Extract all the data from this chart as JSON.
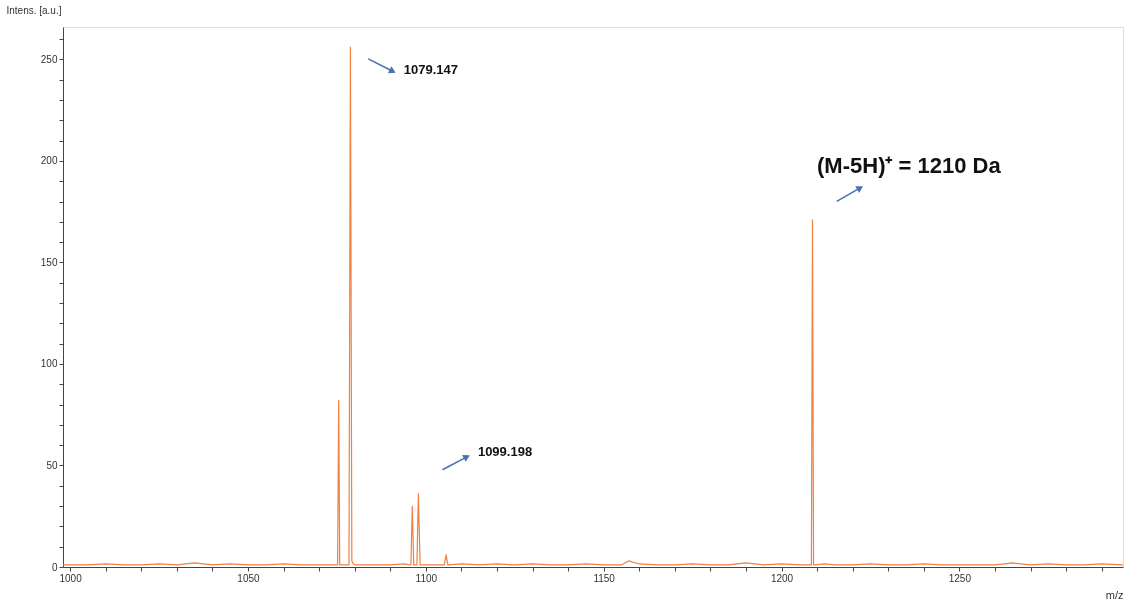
{
  "chart_data": {
    "type": "line",
    "xlabel": "m/z",
    "ylabel": "Intens. [a.u.]",
    "x": [
      998,
      1005,
      1010,
      1015,
      1020,
      1025,
      1030,
      1035,
      1040,
      1045,
      1050,
      1055,
      1060,
      1065,
      1070,
      1074,
      1075.2,
      1075.5,
      1075.8,
      1076.4,
      1077,
      1078.4,
      1078.8,
      1079.2,
      1079.6,
      1080.4,
      1081,
      1082,
      1085,
      1090,
      1094,
      1095.8,
      1096.2,
      1096.6,
      1097.5,
      1097.9,
      1098.4,
      1098.9,
      1100,
      1105.2,
      1105.7,
      1106.2,
      1110,
      1115,
      1120,
      1125,
      1130,
      1135,
      1140,
      1145,
      1150,
      1155,
      1157,
      1160,
      1165,
      1170,
      1175,
      1180,
      1185,
      1190,
      1195,
      1200,
      1205,
      1208,
      1208.4,
      1208.7,
      1209.0,
      1209.5,
      1212,
      1215,
      1220,
      1225,
      1230,
      1235,
      1240,
      1245,
      1250,
      1255,
      1260,
      1265,
      1270,
      1275,
      1280,
      1285,
      1290,
      1296
    ],
    "series": [
      {
        "color": "#ee8040",
        "values": [
          1,
          1,
          1.5,
          1,
          1,
          1.5,
          1,
          2,
          1,
          1.5,
          1,
          1,
          1.5,
          1,
          1,
          1,
          1,
          82,
          1,
          1,
          1,
          1,
          256,
          3,
          1.5,
          1,
          1,
          1,
          1,
          1,
          1.5,
          1,
          30,
          1,
          1,
          36,
          1,
          1,
          1,
          1,
          6,
          1,
          1.5,
          1,
          1.5,
          1,
          1.5,
          1,
          1,
          1.5,
          1,
          1,
          3,
          1.5,
          1,
          1,
          1.5,
          1,
          1,
          2,
          1,
          1.5,
          1,
          1,
          1,
          171,
          1,
          1,
          1.5,
          1,
          1,
          1.5,
          1,
          1,
          1.5,
          1,
          1,
          1,
          1,
          2,
          1,
          1.5,
          1,
          1,
          1.5,
          1
        ]
      }
    ],
    "xlim": [
      998,
      1296
    ],
    "xticks": [
      1000,
      {
        "value": 1010,
        "label": null
      },
      {
        "value": 1020,
        "label": null
      },
      {
        "value": 1030,
        "label": null
      },
      {
        "value": 1040,
        "label": null
      },
      1050,
      {
        "value": 1060,
        "label": null
      },
      {
        "value": 1070,
        "label": null
      },
      {
        "value": 1080,
        "label": null
      },
      {
        "value": 1090,
        "label": null
      },
      1100,
      {
        "value": 1110,
        "label": null
      },
      {
        "value": 1120,
        "label": null
      },
      {
        "value": 1130,
        "label": null
      },
      {
        "value": 1140,
        "label": null
      },
      1150,
      {
        "value": 1160,
        "label": null
      },
      {
        "value": 1170,
        "label": null
      },
      {
        "value": 1180,
        "label": null
      },
      {
        "value": 1190,
        "label": null
      },
      1200,
      {
        "value": 1210,
        "label": null
      },
      {
        "value": 1220,
        "label": null
      },
      {
        "value": 1230,
        "label": null
      },
      {
        "value": 1240,
        "label": null
      },
      1250,
      {
        "value": 1260,
        "label": null
      },
      {
        "value": 1270,
        "label": null
      },
      {
        "value": 1280,
        "label": null
      },
      {
        "value": 1290,
        "label": null
      }
    ],
    "ylim": [
      0,
      266
    ],
    "yticks": [
      0,
      {
        "value": 10,
        "label": null
      },
      {
        "value": 20,
        "label": null
      },
      {
        "value": 30,
        "label": null
      },
      {
        "value": 40,
        "label": null
      },
      50,
      {
        "value": 60,
        "label": null
      },
      {
        "value": 70,
        "label": null
      },
      {
        "value": 80,
        "label": null
      },
      {
        "value": 90,
        "label": null
      },
      100,
      {
        "value": 110,
        "label": null
      },
      {
        "value": 120,
        "label": null
      },
      {
        "value": 130,
        "label": null
      },
      {
        "value": 140,
        "label": null
      },
      150,
      {
        "value": 160,
        "label": null
      },
      {
        "value": 170,
        "label": null
      },
      {
        "value": 180,
        "label": null
      },
      {
        "value": 190,
        "label": null
      },
      200,
      {
        "value": 210,
        "label": null
      },
      {
        "value": 220,
        "label": null
      },
      {
        "value": 230,
        "label": null
      },
      {
        "value": 240,
        "label": null
      },
      250,
      {
        "value": 260,
        "label": null
      }
    ],
    "grid": false,
    "legend": false,
    "annotations": [
      "1079.147",
      "1099.198",
      "(M-5H)⁺ = 1210 Da"
    ]
  }
}
